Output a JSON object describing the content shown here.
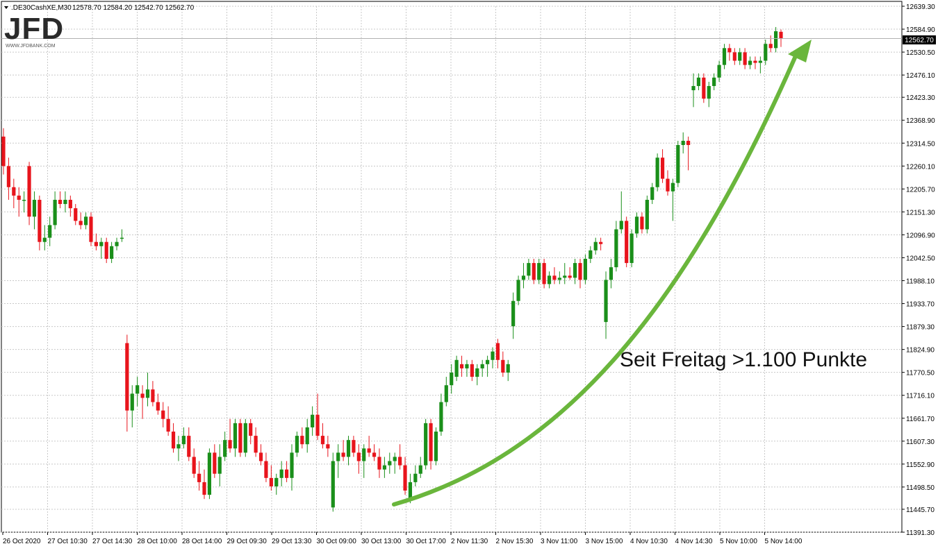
{
  "header": {
    "symbol": ".DE30CashXE,M30",
    "ohlc": "12578.70 12584.20 12542.70 12562.70"
  },
  "logo": {
    "text": "JFD",
    "sub": "WWW.JFDBANK.COM"
  },
  "annotation": "Seit Freitag >1.100 Punkte",
  "current_price_label": "12562.70",
  "colors": {
    "up": "#1a8f1a",
    "down": "#e8141c",
    "arrow": "#6ab63c",
    "grid": "#c8c8c8"
  },
  "chart_data": {
    "type": "candlestick",
    "ylim": [
      11391.3,
      12639.3
    ],
    "y_ticks": [
      "12639.30",
      "12584.90",
      "12530.50",
      "12476.10",
      "12423.30",
      "12368.90",
      "12314.50",
      "12260.10",
      "12205.70",
      "12151.30",
      "12096.90",
      "12042.50",
      "11988.10",
      "11933.70",
      "11879.30",
      "11824.90",
      "11770.50",
      "11716.10",
      "11661.70",
      "11607.30",
      "11552.90",
      "11498.50",
      "11445.70",
      "11391.30"
    ],
    "x_ticks": [
      "26 Oct 2020",
      "27 Oct 10:30",
      "27 Oct 14:30",
      "28 Oct 10:00",
      "28 Oct 14:00",
      "29 Oct 09:30",
      "29 Oct 13:30",
      "30 Oct 09:00",
      "30 Oct 13:00",
      "30 Oct 17:00",
      "2 Nov 11:30",
      "2 Nov 15:30",
      "3 Nov 11:00",
      "3 Nov 15:00",
      "4 Nov 10:30",
      "4 Nov 14:30",
      "5 Nov 10:00",
      "5 Nov 14:00"
    ],
    "current_price": 12562.7,
    "candles": [
      {
        "o": 12330,
        "h": 12350,
        "l": 12240,
        "c": 12260
      },
      {
        "o": 12260,
        "h": 12280,
        "l": 12180,
        "c": 12210
      },
      {
        "o": 12210,
        "h": 12230,
        "l": 12160,
        "c": 12190
      },
      {
        "o": 12190,
        "h": 12210,
        "l": 12140,
        "c": 12180
      },
      {
        "o": 12180,
        "h": 12200,
        "l": 12150,
        "c": 12180
      },
      {
        "o": 12260,
        "h": 12270,
        "l": 12120,
        "c": 12140
      },
      {
        "o": 12140,
        "h": 12200,
        "l": 12110,
        "c": 12180
      },
      {
        "o": 12180,
        "h": 12190,
        "l": 12060,
        "c": 12080
      },
      {
        "o": 12080,
        "h": 12120,
        "l": 12060,
        "c": 12090
      },
      {
        "o": 12090,
        "h": 12140,
        "l": 12070,
        "c": 12120
      },
      {
        "o": 12120,
        "h": 12200,
        "l": 12110,
        "c": 12180
      },
      {
        "o": 12180,
        "h": 12200,
        "l": 12160,
        "c": 12170
      },
      {
        "o": 12170,
        "h": 12200,
        "l": 12150,
        "c": 12180
      },
      {
        "o": 12180,
        "h": 12190,
        "l": 12140,
        "c": 12160
      },
      {
        "o": 12160,
        "h": 12170,
        "l": 12120,
        "c": 12130
      },
      {
        "o": 12130,
        "h": 12150,
        "l": 12110,
        "c": 12120
      },
      {
        "o": 12120,
        "h": 12150,
        "l": 12110,
        "c": 12140
      },
      {
        "o": 12140,
        "h": 12150,
        "l": 12070,
        "c": 12080
      },
      {
        "o": 12080,
        "h": 12100,
        "l": 12060,
        "c": 12070
      },
      {
        "o": 12070,
        "h": 12090,
        "l": 12040,
        "c": 12080
      },
      {
        "o": 12080,
        "h": 12090,
        "l": 12030,
        "c": 12040
      },
      {
        "o": 12040,
        "h": 12080,
        "l": 12030,
        "c": 12070
      },
      {
        "o": 12070,
        "h": 12090,
        "l": 12060,
        "c": 12080
      },
      {
        "o": 12090,
        "h": 12110,
        "l": 12080,
        "c": 12090
      },
      {
        "o": 11840,
        "h": 11860,
        "l": 11630,
        "c": 11680
      },
      {
        "o": 11680,
        "h": 11740,
        "l": 11640,
        "c": 11720
      },
      {
        "o": 11720,
        "h": 11760,
        "l": 11690,
        "c": 11740
      },
      {
        "o": 11720,
        "h": 11740,
        "l": 11660,
        "c": 11710
      },
      {
        "o": 11710,
        "h": 11770,
        "l": 11690,
        "c": 11730
      },
      {
        "o": 11730,
        "h": 11750,
        "l": 11690,
        "c": 11700
      },
      {
        "o": 11700,
        "h": 11720,
        "l": 11670,
        "c": 11680
      },
      {
        "o": 11680,
        "h": 11700,
        "l": 11640,
        "c": 11660
      },
      {
        "o": 11660,
        "h": 11690,
        "l": 11620,
        "c": 11630
      },
      {
        "o": 11630,
        "h": 11650,
        "l": 11580,
        "c": 11590
      },
      {
        "o": 11590,
        "h": 11620,
        "l": 11560,
        "c": 11600
      },
      {
        "o": 11600,
        "h": 11640,
        "l": 11590,
        "c": 11620
      },
      {
        "o": 11620,
        "h": 11640,
        "l": 11560,
        "c": 11570
      },
      {
        "o": 11570,
        "h": 11590,
        "l": 11520,
        "c": 11530
      },
      {
        "o": 11530,
        "h": 11560,
        "l": 11490,
        "c": 11510
      },
      {
        "o": 11510,
        "h": 11540,
        "l": 11470,
        "c": 11480
      },
      {
        "o": 11480,
        "h": 11590,
        "l": 11470,
        "c": 11580
      },
      {
        "o": 11580,
        "h": 11600,
        "l": 11520,
        "c": 11530
      },
      {
        "o": 11530,
        "h": 11600,
        "l": 11500,
        "c": 11570
      },
      {
        "o": 11570,
        "h": 11630,
        "l": 11560,
        "c": 11610
      },
      {
        "o": 11610,
        "h": 11660,
        "l": 11580,
        "c": 11590
      },
      {
        "o": 11590,
        "h": 11660,
        "l": 11570,
        "c": 11650
      },
      {
        "o": 11650,
        "h": 11660,
        "l": 11570,
        "c": 11580
      },
      {
        "o": 11580,
        "h": 11660,
        "l": 11570,
        "c": 11650
      },
      {
        "o": 11650,
        "h": 11660,
        "l": 11600,
        "c": 11620
      },
      {
        "o": 11620,
        "h": 11640,
        "l": 11570,
        "c": 11580
      },
      {
        "o": 11580,
        "h": 11600,
        "l": 11550,
        "c": 11560
      },
      {
        "o": 11560,
        "h": 11580,
        "l": 11510,
        "c": 11520
      },
      {
        "o": 11520,
        "h": 11550,
        "l": 11490,
        "c": 11500
      },
      {
        "o": 11500,
        "h": 11530,
        "l": 11480,
        "c": 11520
      },
      {
        "o": 11520,
        "h": 11560,
        "l": 11500,
        "c": 11540
      },
      {
        "o": 11540,
        "h": 11560,
        "l": 11510,
        "c": 11520
      },
      {
        "o": 11520,
        "h": 11600,
        "l": 11490,
        "c": 11580
      },
      {
        "o": 11580,
        "h": 11630,
        "l": 11570,
        "c": 11620
      },
      {
        "o": 11620,
        "h": 11640,
        "l": 11590,
        "c": 11600
      },
      {
        "o": 11600,
        "h": 11660,
        "l": 11580,
        "c": 11640
      },
      {
        "o": 11640,
        "h": 11690,
        "l": 11620,
        "c": 11670
      },
      {
        "o": 11670,
        "h": 11720,
        "l": 11610,
        "c": 11620
      },
      {
        "o": 11620,
        "h": 11650,
        "l": 11590,
        "c": 11600
      },
      {
        "o": 11600,
        "h": 11620,
        "l": 11570,
        "c": 11590
      },
      {
        "o": 11450,
        "h": 11580,
        "l": 11440,
        "c": 11560
      },
      {
        "o": 11560,
        "h": 11600,
        "l": 11520,
        "c": 11580
      },
      {
        "o": 11580,
        "h": 11610,
        "l": 11560,
        "c": 11570
      },
      {
        "o": 11570,
        "h": 11620,
        "l": 11550,
        "c": 11610
      },
      {
        "o": 11610,
        "h": 11620,
        "l": 11570,
        "c": 11580
      },
      {
        "o": 11580,
        "h": 11600,
        "l": 11530,
        "c": 11560
      },
      {
        "o": 11560,
        "h": 11600,
        "l": 11520,
        "c": 11590
      },
      {
        "o": 11590,
        "h": 11620,
        "l": 11570,
        "c": 11580
      },
      {
        "o": 11580,
        "h": 11600,
        "l": 11560,
        "c": 11570
      },
      {
        "o": 11570,
        "h": 11590,
        "l": 11520,
        "c": 11540
      },
      {
        "o": 11540,
        "h": 11570,
        "l": 11520,
        "c": 11550
      },
      {
        "o": 11550,
        "h": 11580,
        "l": 11530,
        "c": 11560
      },
      {
        "o": 11560,
        "h": 11580,
        "l": 11530,
        "c": 11570
      },
      {
        "o": 11570,
        "h": 11600,
        "l": 11540,
        "c": 11550
      },
      {
        "o": 11550,
        "h": 11570,
        "l": 11480,
        "c": 11490
      },
      {
        "o": 11470,
        "h": 11530,
        "l": 11460,
        "c": 11510
      },
      {
        "o": 11510,
        "h": 11550,
        "l": 11500,
        "c": 11530
      },
      {
        "o": 11530,
        "h": 11570,
        "l": 11520,
        "c": 11550
      },
      {
        "o": 11550,
        "h": 11660,
        "l": 11540,
        "c": 11650
      },
      {
        "o": 11650,
        "h": 11660,
        "l": 11540,
        "c": 11560
      },
      {
        "o": 11560,
        "h": 11640,
        "l": 11550,
        "c": 11630
      },
      {
        "o": 11630,
        "h": 11720,
        "l": 11620,
        "c": 11700
      },
      {
        "o": 11700,
        "h": 11760,
        "l": 11690,
        "c": 11740
      },
      {
        "o": 11740,
        "h": 11790,
        "l": 11720,
        "c": 11770
      },
      {
        "o": 11760,
        "h": 11810,
        "l": 11750,
        "c": 11800
      },
      {
        "o": 11790,
        "h": 11810,
        "l": 11760,
        "c": 11780
      },
      {
        "o": 11780,
        "h": 11800,
        "l": 11760,
        "c": 11790
      },
      {
        "o": 11790,
        "h": 11800,
        "l": 11750,
        "c": 11760
      },
      {
        "o": 11760,
        "h": 11790,
        "l": 11740,
        "c": 11780
      },
      {
        "o": 11780,
        "h": 11800,
        "l": 11760,
        "c": 11790
      },
      {
        "o": 11790,
        "h": 11810,
        "l": 11760,
        "c": 11800
      },
      {
        "o": 11800,
        "h": 11830,
        "l": 11780,
        "c": 11820
      },
      {
        "o": 11840,
        "h": 11850,
        "l": 11780,
        "c": 11800
      },
      {
        "o": 11800,
        "h": 11820,
        "l": 11760,
        "c": 11770
      },
      {
        "o": 11770,
        "h": 11800,
        "l": 11750,
        "c": 11790
      },
      {
        "o": 11880,
        "h": 11960,
        "l": 11850,
        "c": 11940
      },
      {
        "o": 11940,
        "h": 12000,
        "l": 11930,
        "c": 11990
      },
      {
        "o": 11990,
        "h": 12030,
        "l": 11970,
        "c": 12000
      },
      {
        "o": 12000,
        "h": 12040,
        "l": 11990,
        "c": 12030
      },
      {
        "o": 12030,
        "h": 12040,
        "l": 11980,
        "c": 11990
      },
      {
        "o": 11990,
        "h": 12040,
        "l": 11980,
        "c": 12030
      },
      {
        "o": 12030,
        "h": 12040,
        "l": 11970,
        "c": 11980
      },
      {
        "o": 11980,
        "h": 12010,
        "l": 11970,
        "c": 12000
      },
      {
        "o": 12000,
        "h": 12020,
        "l": 11980,
        "c": 11990
      },
      {
        "o": 11990,
        "h": 12010,
        "l": 11980,
        "c": 11995
      },
      {
        "o": 11995,
        "h": 12030,
        "l": 11980,
        "c": 12000
      },
      {
        "o": 12000,
        "h": 12020,
        "l": 11990,
        "c": 11995
      },
      {
        "o": 11995,
        "h": 12040,
        "l": 11980,
        "c": 12030
      },
      {
        "o": 12030,
        "h": 12040,
        "l": 11970,
        "c": 11990
      },
      {
        "o": 11990,
        "h": 12050,
        "l": 11980,
        "c": 12040
      },
      {
        "o": 12040,
        "h": 12070,
        "l": 12030,
        "c": 12060
      },
      {
        "o": 12060,
        "h": 12090,
        "l": 12050,
        "c": 12080
      },
      {
        "o": 12080,
        "h": 12090,
        "l": 12060,
        "c": 12075
      },
      {
        "o": 11890,
        "h": 12010,
        "l": 11850,
        "c": 11990
      },
      {
        "o": 11990,
        "h": 12040,
        "l": 11970,
        "c": 12020
      },
      {
        "o": 12020,
        "h": 12130,
        "l": 12010,
        "c": 12110
      },
      {
        "o": 12110,
        "h": 12200,
        "l": 12100,
        "c": 12130
      },
      {
        "o": 12130,
        "h": 12140,
        "l": 12020,
        "c": 12030
      },
      {
        "o": 12030,
        "h": 12110,
        "l": 12020,
        "c": 12100
      },
      {
        "o": 12100,
        "h": 12150,
        "l": 12090,
        "c": 12140
      },
      {
        "o": 12140,
        "h": 12150,
        "l": 12100,
        "c": 12110
      },
      {
        "o": 12110,
        "h": 12190,
        "l": 12100,
        "c": 12180
      },
      {
        "o": 12180,
        "h": 12220,
        "l": 12170,
        "c": 12210
      },
      {
        "o": 12210,
        "h": 12290,
        "l": 12200,
        "c": 12280
      },
      {
        "o": 12280,
        "h": 12300,
        "l": 12220,
        "c": 12230
      },
      {
        "o": 12230,
        "h": 12250,
        "l": 12190,
        "c": 12200
      },
      {
        "o": 12200,
        "h": 12230,
        "l": 12130,
        "c": 12220
      },
      {
        "o": 12220,
        "h": 12320,
        "l": 12210,
        "c": 12310
      },
      {
        "o": 12310,
        "h": 12340,
        "l": 12290,
        "c": 12320
      },
      {
        "o": 12320,
        "h": 12330,
        "l": 12250,
        "c": 12310
      },
      {
        "o": 12440,
        "h": 12480,
        "l": 12400,
        "c": 12450
      },
      {
        "o": 12450,
        "h": 12480,
        "l": 12440,
        "c": 12470
      },
      {
        "o": 12470,
        "h": 12480,
        "l": 12410,
        "c": 12420
      },
      {
        "o": 12420,
        "h": 12460,
        "l": 12400,
        "c": 12450
      },
      {
        "o": 12450,
        "h": 12480,
        "l": 12440,
        "c": 12470
      },
      {
        "o": 12470,
        "h": 12510,
        "l": 12460,
        "c": 12500
      },
      {
        "o": 12500,
        "h": 12550,
        "l": 12490,
        "c": 12540
      },
      {
        "o": 12540,
        "h": 12550,
        "l": 12510,
        "c": 12530
      },
      {
        "o": 12530,
        "h": 12540,
        "l": 12500,
        "c": 12510
      },
      {
        "o": 12510,
        "h": 12540,
        "l": 12500,
        "c": 12530
      },
      {
        "o": 12530,
        "h": 12540,
        "l": 12490,
        "c": 12500
      },
      {
        "o": 12500,
        "h": 12520,
        "l": 12490,
        "c": 12510
      },
      {
        "o": 12510,
        "h": 12520,
        "l": 12490,
        "c": 12505
      },
      {
        "o": 12505,
        "h": 12520,
        "l": 12480,
        "c": 12510
      },
      {
        "o": 12510,
        "h": 12560,
        "l": 12500,
        "c": 12550
      },
      {
        "o": 12550,
        "h": 12570,
        "l": 12530,
        "c": 12540
      },
      {
        "o": 12540,
        "h": 12590,
        "l": 12530,
        "c": 12580
      },
      {
        "o": 12578.7,
        "h": 12584.2,
        "l": 12542.7,
        "c": 12562.7
      }
    ]
  }
}
